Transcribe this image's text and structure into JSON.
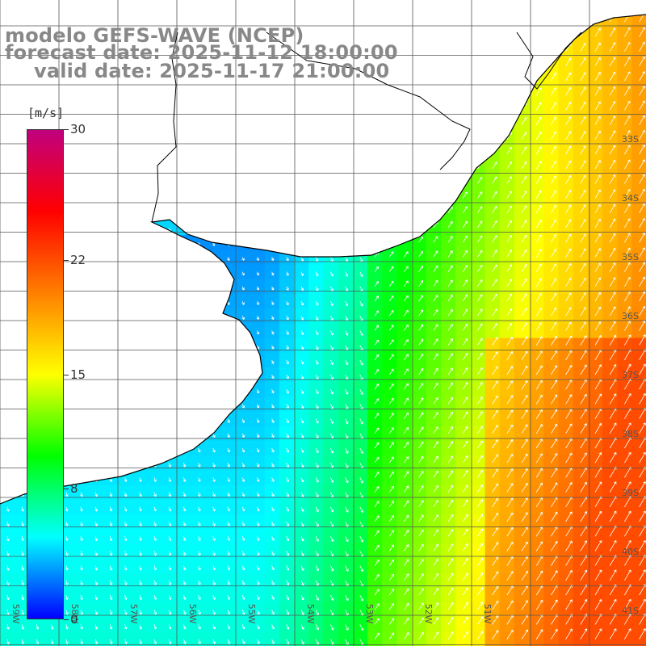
{
  "title": {
    "line1": "modelo GEFS-WAVE (NCEP)",
    "line2": "forecast date: 2025-11-12 18:00:00",
    "line3": "valid date: 2025-11-17 21:00:00"
  },
  "colorbar": {
    "units": "[m/s]",
    "ticks": [
      {
        "label": "30",
        "value": 30
      },
      {
        "label": "22",
        "value": 22
      },
      {
        "label": "15",
        "value": 15
      },
      {
        "label": "8",
        "value": 8
      },
      {
        "label": "0",
        "value": 0
      }
    ],
    "range": [
      0,
      30
    ],
    "colors": [
      "#0000ff",
      "#00ffff",
      "#00ff00",
      "#ffff00",
      "#ff7f00",
      "#ff0000",
      "#c0007f"
    ]
  },
  "lat_labels": [
    "33S",
    "34S",
    "35S",
    "36S",
    "37S",
    "38S",
    "39S",
    "40S",
    "41S"
  ],
  "lon_labels": [
    "59W",
    "58W",
    "57W",
    "56W",
    "55W",
    "54W",
    "53W",
    "52W",
    "51W"
  ],
  "colors": {
    "land": "#ffffff",
    "grid": "#555555",
    "coast": "#000000",
    "arrow": "#ffffff",
    "label_gray": "#888888"
  }
}
